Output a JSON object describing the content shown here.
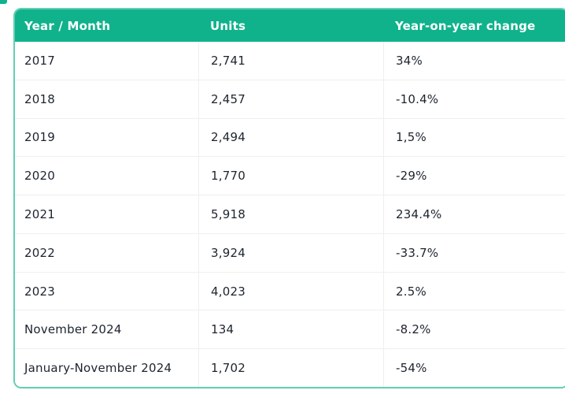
{
  "theme": {
    "header-bg": "#10b28c",
    "header-text": "#ffffff",
    "table-border": "#62ceb3",
    "row-divider": "#efefef",
    "cell-text": "#1d242e",
    "corner-accent": "#10b28c"
  },
  "table": {
    "columns": [
      "Year / Month",
      "Units",
      "Year-on-year change"
    ],
    "rows": [
      {
        "period": "2017",
        "units": "2,741",
        "change": "34%"
      },
      {
        "period": "2018",
        "units": "2,457",
        "change": "-10.4%"
      },
      {
        "period": "2019",
        "units": "2,494",
        "change": "1,5%"
      },
      {
        "period": "2020",
        "units": "1,770",
        "change": "-29%"
      },
      {
        "period": "2021",
        "units": "5,918",
        "change": "234.4%"
      },
      {
        "period": "2022",
        "units": "3,924",
        "change": "-33.7%"
      },
      {
        "period": "2023",
        "units": "4,023",
        "change": "2.5%"
      },
      {
        "period": "November 2024",
        "units": "134",
        "change": "-8.2%"
      },
      {
        "period": "January-November 2024",
        "units": "1,702",
        "change": "-54%"
      }
    ]
  },
  "chart_data": {
    "type": "table",
    "title": "",
    "columns": [
      "Year / Month",
      "Units",
      "Year-on-year change"
    ],
    "rows": [
      [
        "2017",
        "2,741",
        "34%"
      ],
      [
        "2018",
        "2,457",
        "-10.4%"
      ],
      [
        "2019",
        "2,494",
        "1,5%"
      ],
      [
        "2020",
        "1,770",
        "-29%"
      ],
      [
        "2021",
        "5,918",
        "234.4%"
      ],
      [
        "2022",
        "3,924",
        "-33.7%"
      ],
      [
        "2023",
        "4,023",
        "2.5%"
      ],
      [
        "November 2024",
        "134",
        "-8.2%"
      ],
      [
        "January-November 2024",
        "1,702",
        "-54%"
      ]
    ],
    "units_values": [
      2741,
      2457,
      2494,
      1770,
      5918,
      3924,
      4023,
      134,
      1702
    ],
    "yoy_change_percent": [
      34,
      -10.4,
      1.5,
      -29,
      234.4,
      -33.7,
      2.5,
      -8.2,
      -54
    ]
  }
}
